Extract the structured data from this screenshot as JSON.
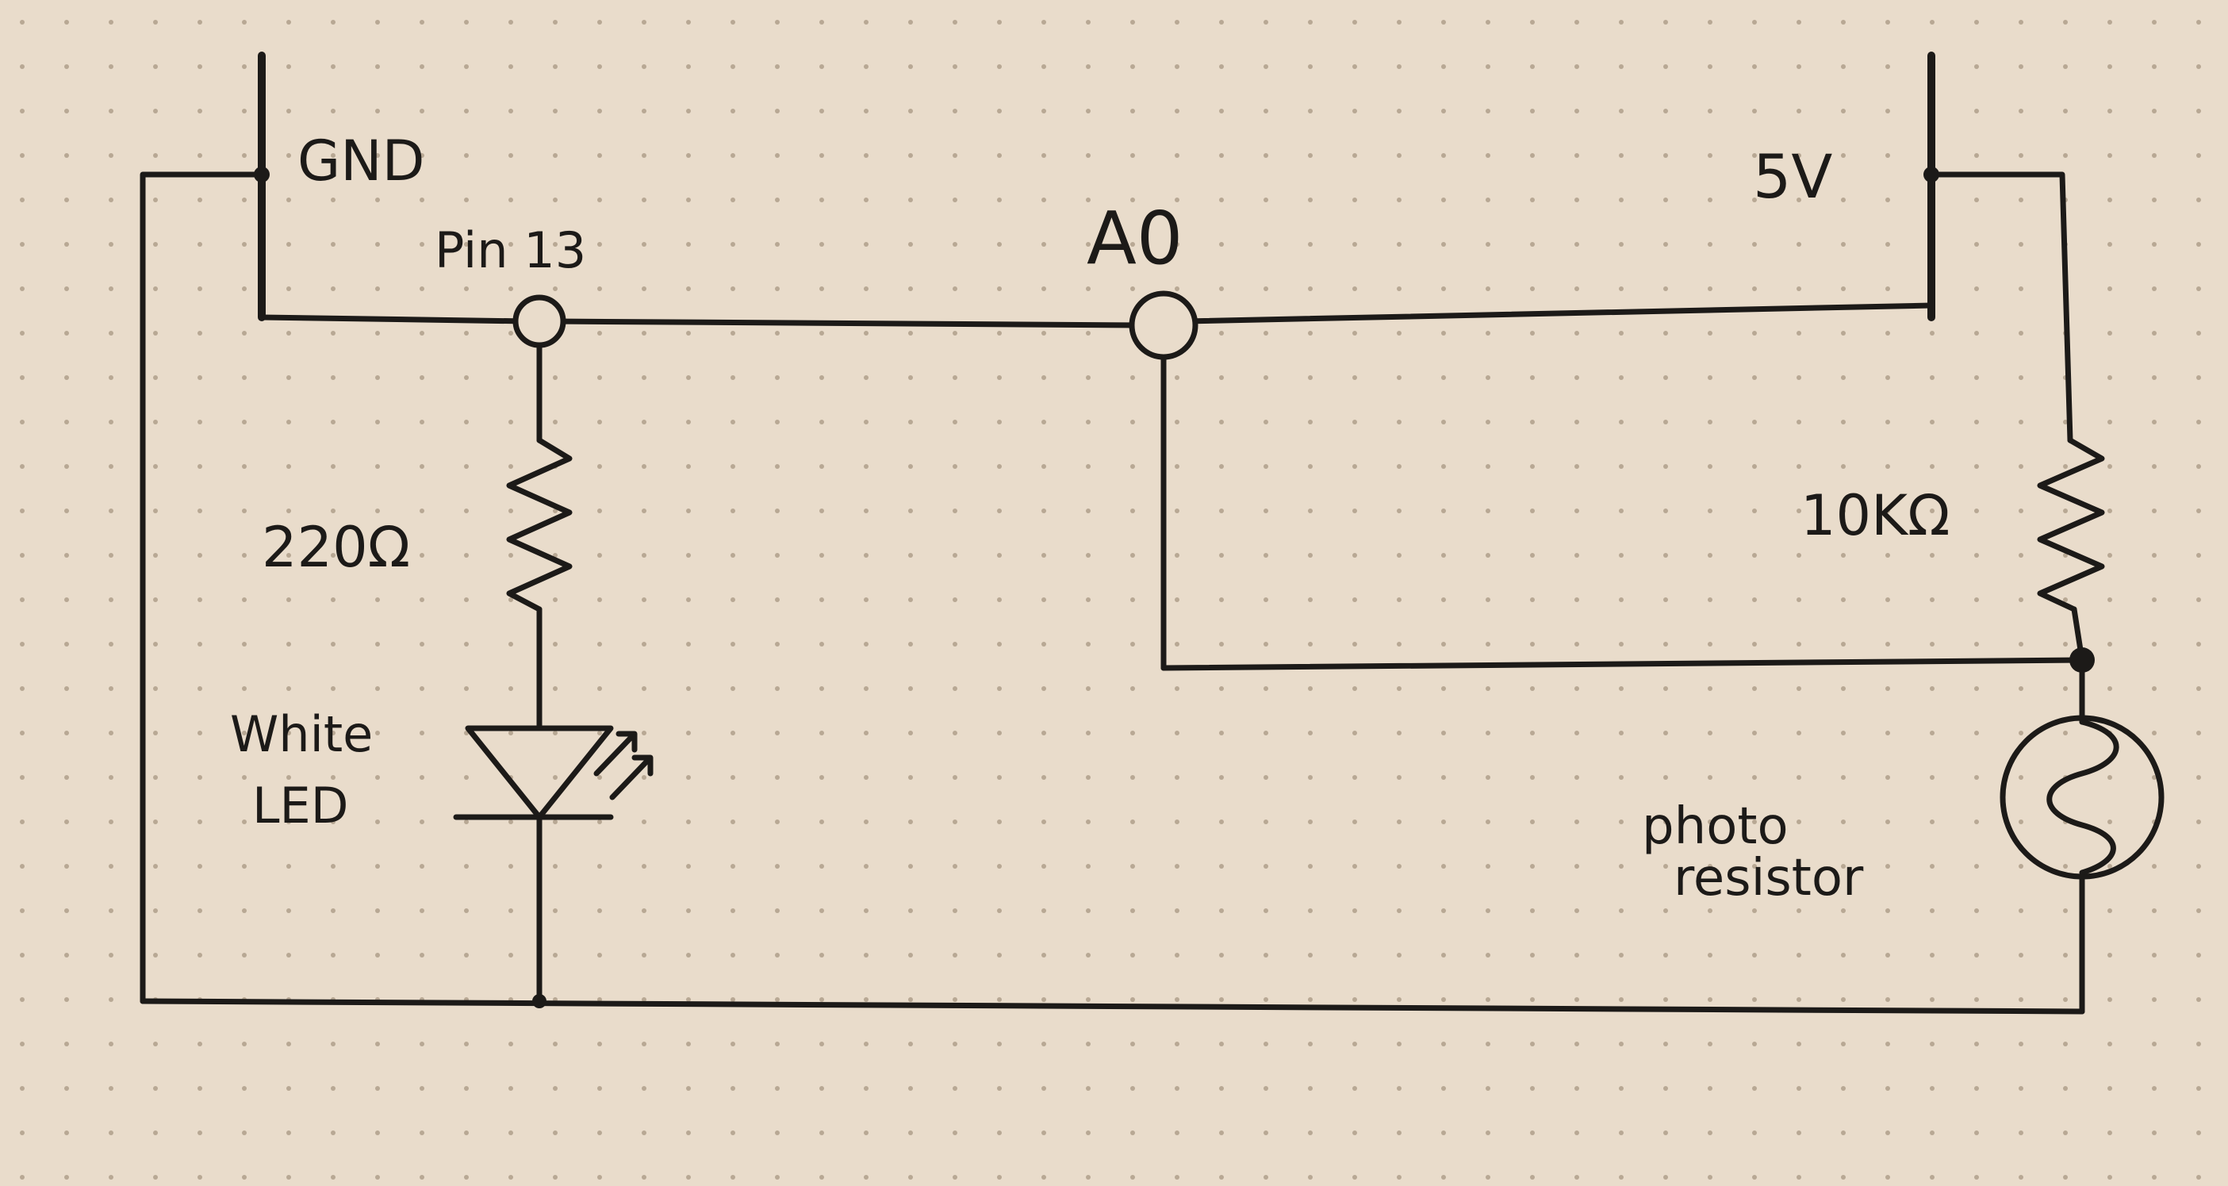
{
  "labels": {
    "gnd": "GND",
    "pin13": "Pin 13",
    "a0": "A0",
    "v5": "5V",
    "r1": "220Ω",
    "r2": "10KΩ",
    "led_line1": "White",
    "led_line2": "LED",
    "photo_line1": "photo",
    "photo_line2": "resistor"
  },
  "colors": {
    "paper": "#e9dccb",
    "ink": "#1c1a18",
    "dots": "#b8a894"
  }
}
